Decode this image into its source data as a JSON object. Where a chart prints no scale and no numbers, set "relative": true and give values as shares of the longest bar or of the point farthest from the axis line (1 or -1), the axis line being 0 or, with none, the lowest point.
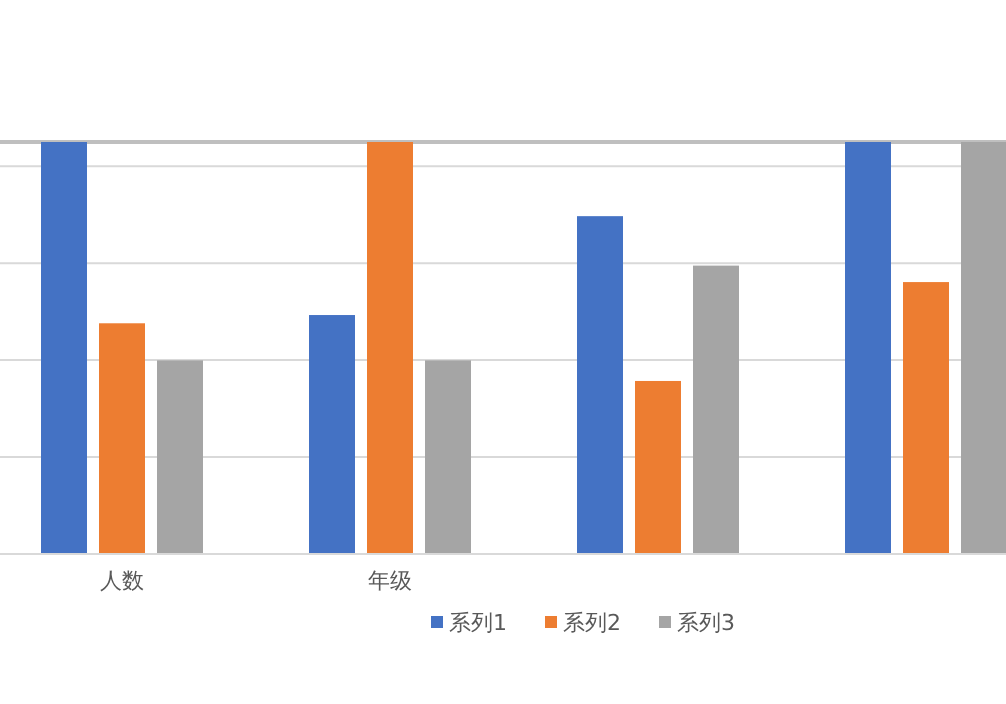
{
  "chart_data": {
    "type": "bar",
    "relative": true,
    "grid": "y",
    "legend": "bottom",
    "categories": [
      "人数",
      "年级",
      null,
      null
    ],
    "series": [
      {
        "name": "系列1",
        "color": "#4472c4",
        "values": [
          1,
          0.58,
          0.82,
          1
        ]
      },
      {
        "name": "系列2",
        "color": "#ed7d31",
        "values": [
          0.56,
          1,
          0.42,
          0.66
        ]
      },
      {
        "name": "系列3",
        "color": "#a5a5a5",
        "values": [
          0.47,
          0.47,
          0.7,
          1
        ]
      }
    ]
  }
}
